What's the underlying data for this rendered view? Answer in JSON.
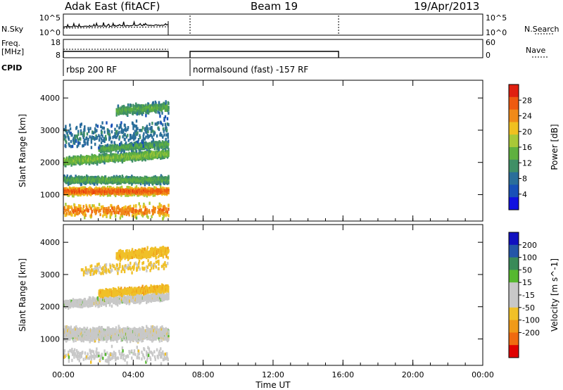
{
  "header": {
    "station": "Adak East (fitACF)",
    "beam": "Beam 19",
    "date": "19/Apr/2013"
  },
  "side_labels": {
    "nsky": "N.Sky",
    "nsearch": "N.Search",
    "freq": "Freq.",
    "mhz": "[MHz]",
    "nave": "Nave",
    "cpid": "CPID"
  },
  "strip_ticks": {
    "nsky_left": [
      "10^5",
      "10^0"
    ],
    "nsky_right": [
      "10^5",
      "10^0"
    ],
    "freq_left": [
      "18",
      "8"
    ],
    "nave_right": [
      "60",
      "0"
    ]
  },
  "cpid": {
    "segments": [
      {
        "label": "rbsp 200 RF",
        "start": "00:00",
        "end": "06:00"
      },
      {
        "label": "normalsound (fast) -157 RF",
        "start": "07:15",
        "end": "15:45"
      }
    ]
  },
  "colors": {
    "power_scale": [
      "#1010e0",
      "#1850b8",
      "#2a6e9a",
      "#3f8f66",
      "#5fb040",
      "#a8c838",
      "#f0c020",
      "#f08a18",
      "#ee5a10",
      "#e02010"
    ],
    "velocity_scale": [
      "#e00000",
      "#f06a10",
      "#f09a18",
      "#f0c028",
      "#c8c8c8",
      "#c8c8c8",
      "#56b830",
      "#3a8a58",
      "#2456a8",
      "#1010c0"
    ]
  },
  "chart_data": [
    {
      "type": "heatmap",
      "panel": "power",
      "title": "",
      "xlabel": "Time UT",
      "ylabel": "Slant Range [km]",
      "x_ticks": [
        "00:00",
        "04:00",
        "08:00",
        "12:00",
        "16:00",
        "20:00",
        "00:00"
      ],
      "y_ticks": [
        1000,
        2000,
        3000,
        4000
      ],
      "xlim_hours": [
        0,
        24
      ],
      "ylim_km": [
        180,
        4550
      ],
      "data_end_hour": 6.0,
      "colorbar": {
        "label": "Power [dB]",
        "ticks": [
          4,
          8,
          12,
          16,
          20,
          24,
          28
        ],
        "range": [
          0,
          32
        ]
      },
      "bands": [
        {
          "center_km": 1100,
          "width_km": 260,
          "level_dB": 24,
          "t_start": 0.0,
          "t_end": 6.0,
          "density": 0.9
        },
        {
          "center_km": 1450,
          "width_km": 260,
          "level_dB": 12,
          "t_start": 0.0,
          "t_end": 6.0,
          "density": 0.7
        },
        {
          "center_km": 2150,
          "width_km": 300,
          "level_dB": 14,
          "t_start": 0.0,
          "t_end": 6.0,
          "density": 0.8
        },
        {
          "center_km": 2450,
          "width_km": 250,
          "level_dB": 12,
          "t_start": 2.0,
          "t_end": 6.0,
          "density": 0.6
        },
        {
          "center_km": 3600,
          "width_km": 350,
          "level_dB": 12,
          "t_start": 3.0,
          "t_end": 6.0,
          "density": 0.45
        },
        {
          "center_km": 500,
          "width_km": 500,
          "level_dB": 22,
          "t_start": 0.0,
          "t_end": 6.0,
          "density": 0.15
        },
        {
          "center_km": 2900,
          "width_km": 900,
          "level_dB": 8,
          "t_start": 0.0,
          "t_end": 6.0,
          "density": 0.08
        }
      ]
    },
    {
      "type": "heatmap",
      "panel": "velocity",
      "title": "",
      "xlabel": "Time UT",
      "ylabel": "Slant Range [km]",
      "x_ticks": [
        "00:00",
        "04:00",
        "08:00",
        "12:00",
        "16:00",
        "20:00",
        "00:00"
      ],
      "y_ticks": [
        1000,
        2000,
        3000,
        4000
      ],
      "xlim_hours": [
        0,
        24
      ],
      "ylim_km": [
        180,
        4550
      ],
      "data_end_hour": 6.0,
      "colorbar": {
        "label": "Velocity [m s^-1]",
        "ticks": [
          200,
          100,
          50,
          15,
          -15,
          -50,
          -100,
          -200
        ]
      },
      "bands": [
        {
          "center_km": 1150,
          "width_km": 450,
          "velocity": 0,
          "t_start": 0.0,
          "t_end": 6.0,
          "density": 0.9
        },
        {
          "center_km": 2200,
          "width_km": 300,
          "velocity": 0,
          "t_start": 0.0,
          "t_end": 6.0,
          "density": 0.5
        },
        {
          "center_km": 2450,
          "width_km": 250,
          "velocity": -40,
          "t_start": 2.0,
          "t_end": 6.0,
          "density": 0.7
        },
        {
          "center_km": 3600,
          "width_km": 350,
          "velocity": -40,
          "t_start": 3.0,
          "t_end": 6.0,
          "density": 0.45
        },
        {
          "center_km": 3200,
          "width_km": 400,
          "velocity": -20,
          "t_start": 1.0,
          "t_end": 6.0,
          "density": 0.12
        },
        {
          "center_km": 500,
          "width_km": 500,
          "velocity": 0,
          "t_start": 0.0,
          "t_end": 6.0,
          "density": 0.1
        }
      ]
    }
  ]
}
